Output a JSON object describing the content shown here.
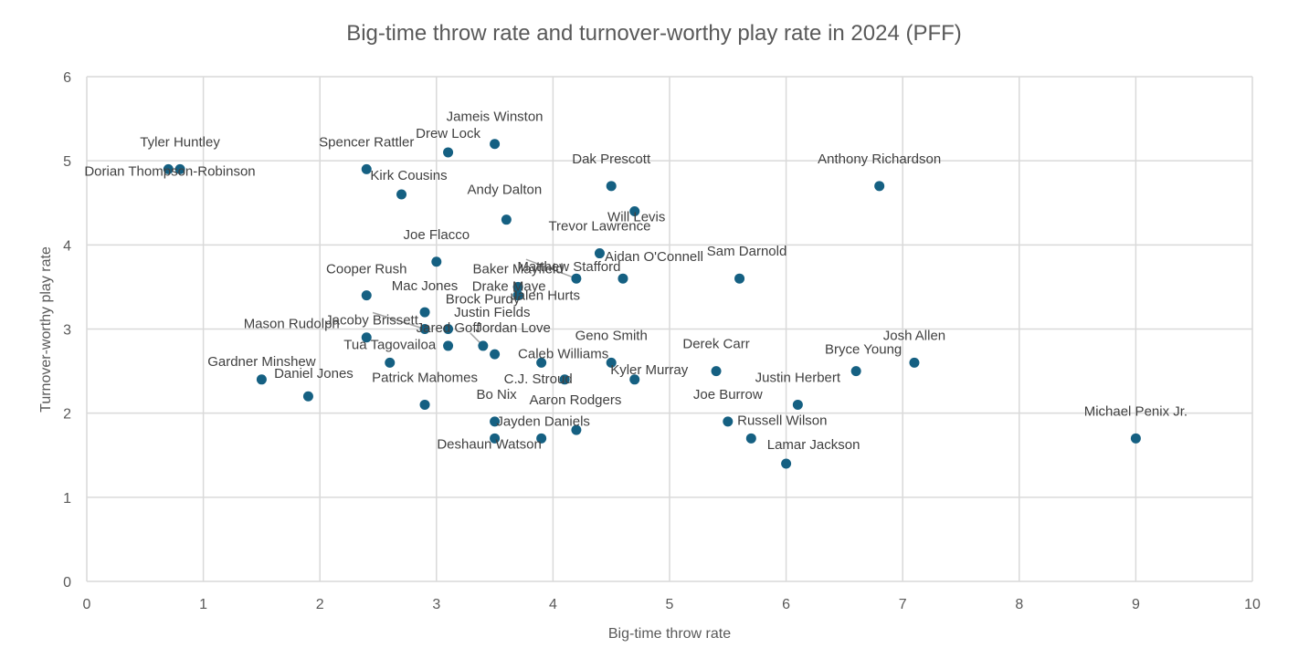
{
  "chart_data": {
    "type": "scatter",
    "title": "Big-time throw rate and turnover-worthy play rate in 2024 (PFF)",
    "xlabel": "Big-time throw rate",
    "ylabel": "Turnover-worthy play rate",
    "xlim": [
      0,
      10
    ],
    "ylim": [
      0,
      6
    ],
    "xticks": [
      0,
      1,
      2,
      3,
      4,
      5,
      6,
      7,
      8,
      9,
      10
    ],
    "yticks": [
      0,
      1,
      2,
      3,
      4,
      5,
      6
    ],
    "grid": true,
    "marker_color": "#156082",
    "points": [
      {
        "name": "Tyler Huntley",
        "x": 0.8,
        "y": 4.9
      },
      {
        "name": "Dorian Thompson-Robinson",
        "x": 0.7,
        "y": 4.9
      },
      {
        "name": "Spencer Rattler",
        "x": 2.4,
        "y": 4.9
      },
      {
        "name": "Kirk Cousins",
        "x": 2.7,
        "y": 4.6
      },
      {
        "name": "Drew Lock",
        "x": 3.1,
        "y": 5.1
      },
      {
        "name": "Jameis Winston",
        "x": 3.5,
        "y": 5.2
      },
      {
        "name": "Andy Dalton",
        "x": 3.6,
        "y": 4.3
      },
      {
        "name": "Dak Prescott",
        "x": 4.5,
        "y": 4.7
      },
      {
        "name": "Will Levis",
        "x": 4.7,
        "y": 4.4
      },
      {
        "name": "Anthony Richardson",
        "x": 6.8,
        "y": 4.7
      },
      {
        "name": "Trevor Lawrence",
        "x": 4.4,
        "y": 3.9
      },
      {
        "name": "Joe Flacco",
        "x": 3.0,
        "y": 3.8
      },
      {
        "name": "Matthew Stafford",
        "x": 4.2,
        "y": 3.6
      },
      {
        "name": "Baker Mayfield",
        "x": 3.7,
        "y": 3.5
      },
      {
        "name": "Aidan O'Connell",
        "x": 4.6,
        "y": 3.6
      },
      {
        "name": "Sam Darnold",
        "x": 5.6,
        "y": 3.6
      },
      {
        "name": "Drake Maye",
        "x": 3.7,
        "y": 3.4
      },
      {
        "name": "Cooper Rush",
        "x": 2.4,
        "y": 3.4
      },
      {
        "name": "Jalen Hurts",
        "x": 3.7,
        "y": 3.4
      },
      {
        "name": "Mac Jones",
        "x": 2.9,
        "y": 3.2
      },
      {
        "name": "Brock Purdy",
        "x": 3.1,
        "y": 3.0
      },
      {
        "name": "Jacoby Brissett",
        "x": 2.9,
        "y": 3.0
      },
      {
        "name": "Justin Fields",
        "x": 3.4,
        "y": 2.8
      },
      {
        "name": "Mason Rudolph",
        "x": 2.4,
        "y": 2.9
      },
      {
        "name": "Jared Goff",
        "x": 3.1,
        "y": 2.8
      },
      {
        "name": "Jordan Love",
        "x": 3.5,
        "y": 2.7
      },
      {
        "name": "Geno Smith",
        "x": 4.5,
        "y": 2.6
      },
      {
        "name": "Caleb Williams",
        "x": 3.9,
        "y": 2.6
      },
      {
        "name": "Tua Tagovailoa",
        "x": 2.6,
        "y": 2.6
      },
      {
        "name": "Gardner Minshew",
        "x": 1.5,
        "y": 2.4
      },
      {
        "name": "Daniel Jones",
        "x": 1.9,
        "y": 2.2
      },
      {
        "name": "Patrick Mahomes",
        "x": 2.9,
        "y": 2.1
      },
      {
        "name": "C.J. Stroud",
        "x": 4.1,
        "y": 2.4
      },
      {
        "name": "Kyler Murray",
        "x": 4.7,
        "y": 2.4
      },
      {
        "name": "Derek Carr",
        "x": 5.4,
        "y": 2.5
      },
      {
        "name": "Bryce Young",
        "x": 6.6,
        "y": 2.5
      },
      {
        "name": "Josh Allen",
        "x": 7.1,
        "y": 2.6
      },
      {
        "name": "Justin Herbert",
        "x": 6.1,
        "y": 2.1
      },
      {
        "name": "Bo Nix",
        "x": 3.5,
        "y": 1.9
      },
      {
        "name": "Aaron Rodgers",
        "x": 4.2,
        "y": 1.8
      },
      {
        "name": "Jayden Daniels",
        "x": 3.9,
        "y": 1.7
      },
      {
        "name": "Deshaun Watson",
        "x": 3.5,
        "y": 1.7
      },
      {
        "name": "Joe Burrow",
        "x": 5.5,
        "y": 1.9
      },
      {
        "name": "Russell Wilson",
        "x": 5.7,
        "y": 1.7
      },
      {
        "name": "Lamar Jackson",
        "x": 6.0,
        "y": 1.4
      },
      {
        "name": "Michael Penix Jr.",
        "x": 9.0,
        "y": 1.7
      }
    ]
  }
}
